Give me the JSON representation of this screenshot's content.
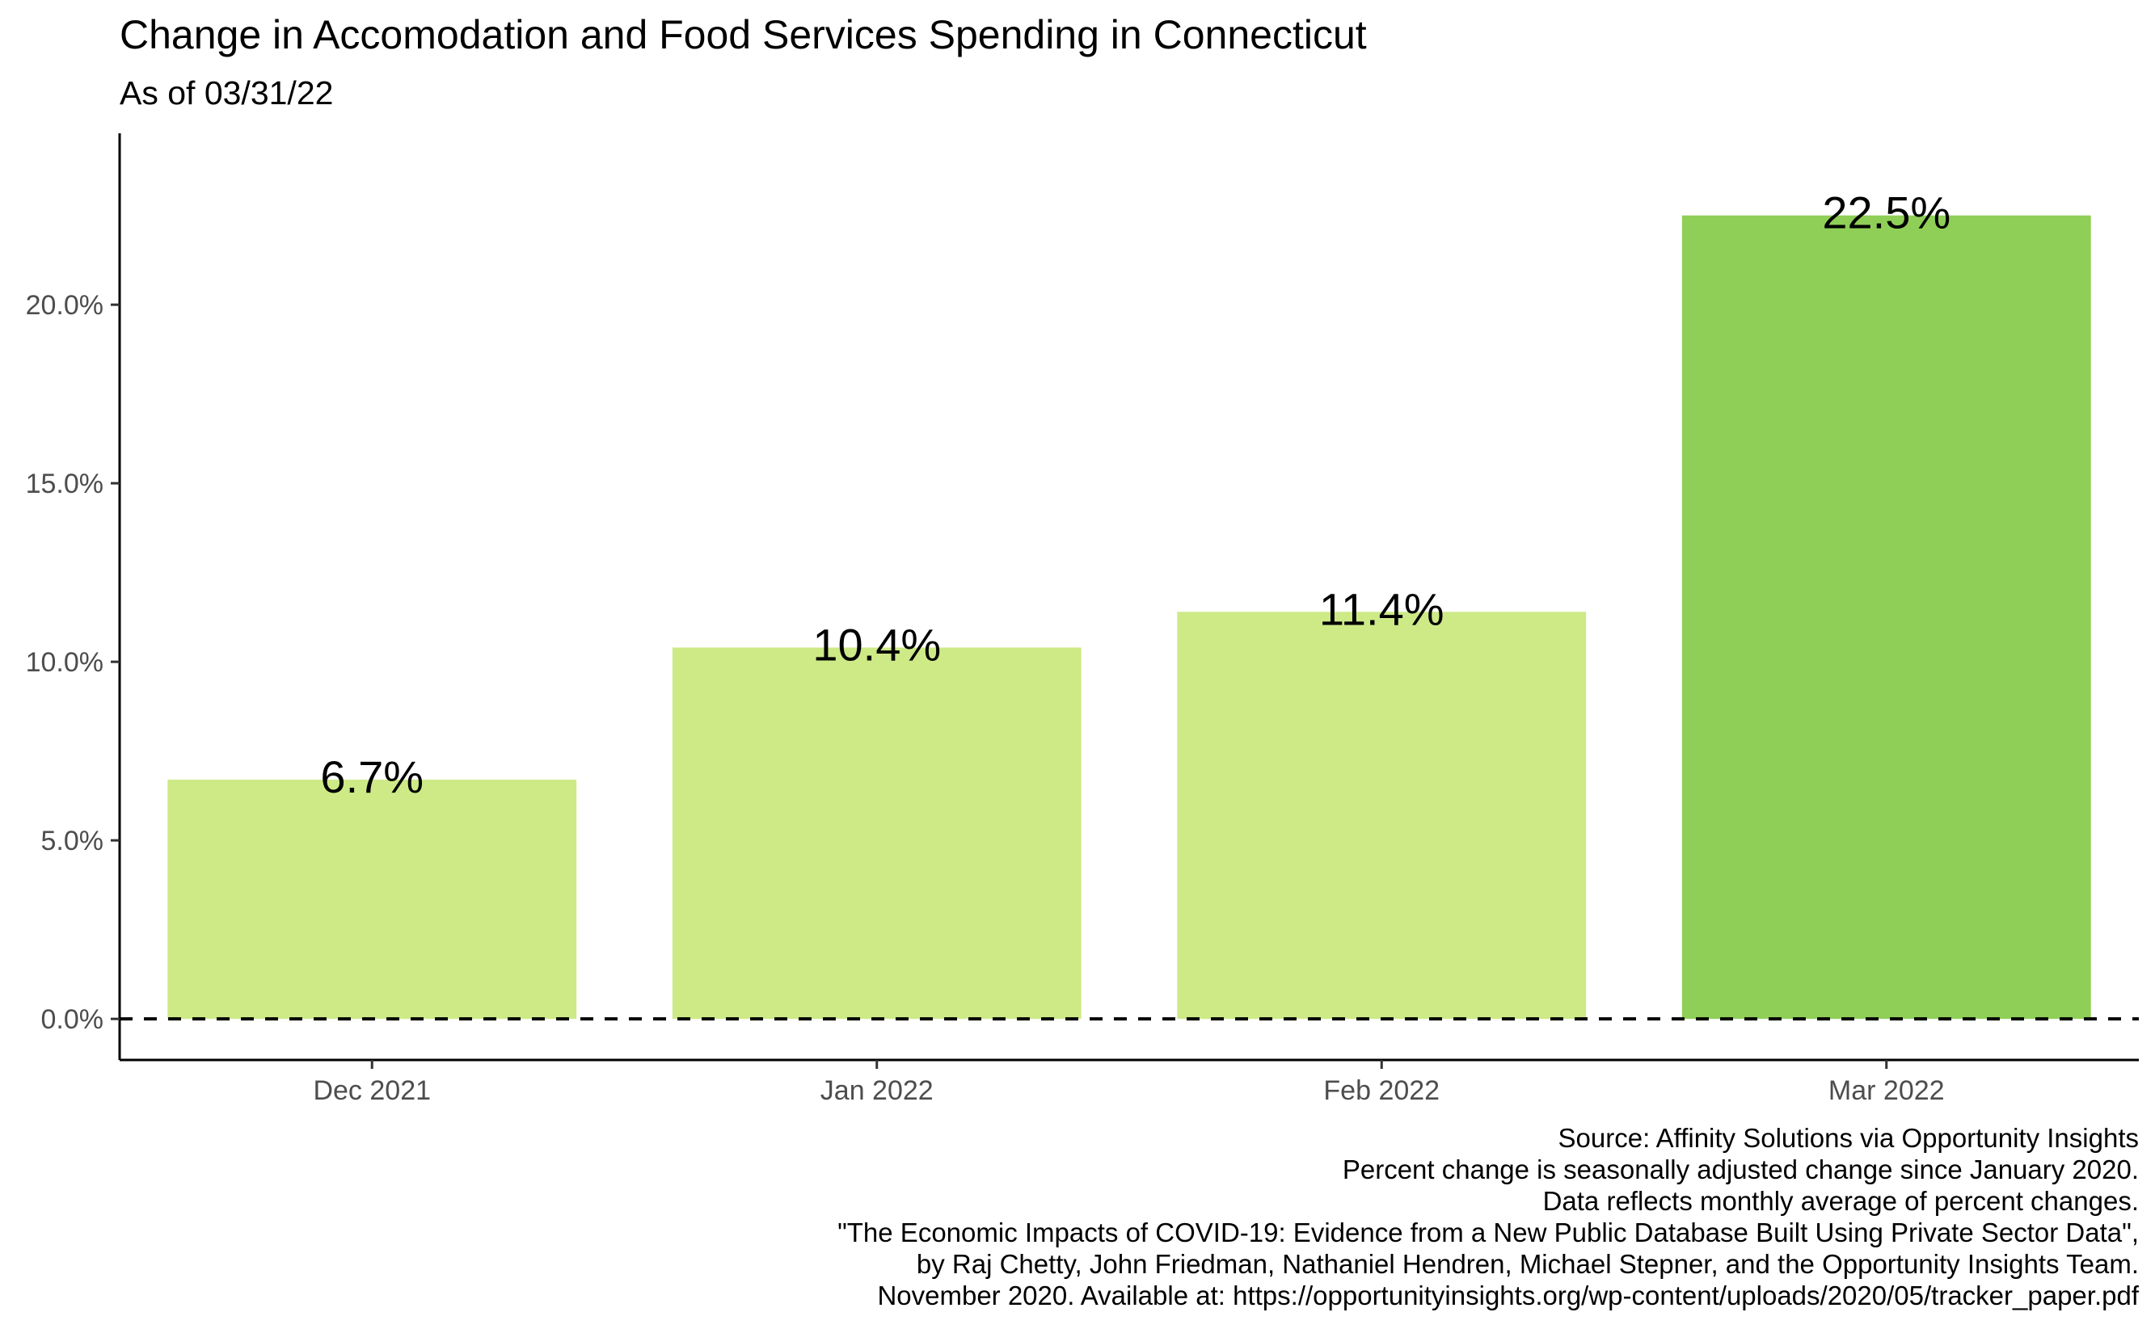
{
  "chart_data": {
    "type": "bar",
    "title": "Change in Accomodation and Food Services Spending in Connecticut",
    "subtitle": "As of 03/31/22",
    "xlabel": "",
    "ylabel": "",
    "categories": [
      "Dec 2021",
      "Jan 2022",
      "Feb 2022",
      "Mar 2022"
    ],
    "values": [
      6.7,
      10.4,
      11.4,
      22.5
    ],
    "value_labels": [
      "6.7%",
      "10.4%",
      "11.4%",
      "22.5%"
    ],
    "bar_colors": [
      "#cdea87",
      "#cdea87",
      "#cdea87",
      "#8fcf57"
    ],
    "ylim": [
      -1.15,
      24.8
    ],
    "yticks": [
      0,
      5,
      10,
      15,
      20
    ],
    "ytick_labels": [
      "0.0%",
      "5.0%",
      "10.0%",
      "15.0%",
      "20.0%"
    ],
    "reference_line": {
      "y": 0,
      "style": "dashed",
      "color": "#000000"
    },
    "grid": false,
    "legend": "none",
    "caption": [
      "Source: Affinity Solutions via Opportunity Insights",
      "Percent change is seasonally adjusted change since January 2020.",
      "Data reflects monthly average of percent changes.",
      "\"The Economic Impacts of COVID-19: Evidence from a New Public Database Built Using Private Sector Data\",",
      "by Raj Chetty, John Friedman, Nathaniel Hendren, Michael Stepner, and the Opportunity Insights Team.",
      "November 2020. Available at: https://opportunityinsights.org/wp-content/uploads/2020/05/tracker_paper.pdf"
    ]
  }
}
